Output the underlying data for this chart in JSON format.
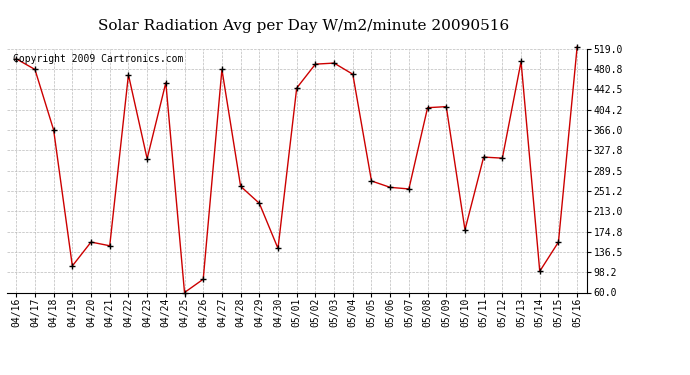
{
  "title": "Solar Radiation Avg per Day W/m2/minute 20090516",
  "copyright": "Copyright 2009 Cartronics.com",
  "labels": [
    "04/16",
    "04/17",
    "04/18",
    "04/19",
    "04/20",
    "04/21",
    "04/22",
    "04/23",
    "04/24",
    "04/25",
    "04/26",
    "04/27",
    "04/28",
    "04/29",
    "04/30",
    "05/01",
    "05/02",
    "05/03",
    "05/04",
    "05/05",
    "05/06",
    "05/07",
    "05/08",
    "05/09",
    "05/10",
    "05/11",
    "05/12",
    "05/13",
    "05/14",
    "05/15",
    "05/16"
  ],
  "values": [
    500,
    480,
    366,
    110,
    155,
    148,
    470,
    312,
    455,
    60,
    85,
    480,
    260,
    228,
    143,
    445,
    490,
    492,
    471,
    270,
    258,
    255,
    408,
    410,
    178,
    315,
    313,
    495,
    100,
    155,
    523
  ],
  "ymin": 60.0,
  "ymax": 519.0,
  "yticks": [
    60.0,
    98.2,
    136.5,
    174.8,
    213.0,
    251.2,
    289.5,
    327.8,
    366.0,
    404.2,
    442.5,
    480.8,
    519.0
  ],
  "line_color": "#cc0000",
  "marker_color": "#000000",
  "bg_color": "#ffffff",
  "grid_color": "#bbbbbb",
  "title_fontsize": 11,
  "copyright_fontsize": 7,
  "tick_fontsize": 7
}
